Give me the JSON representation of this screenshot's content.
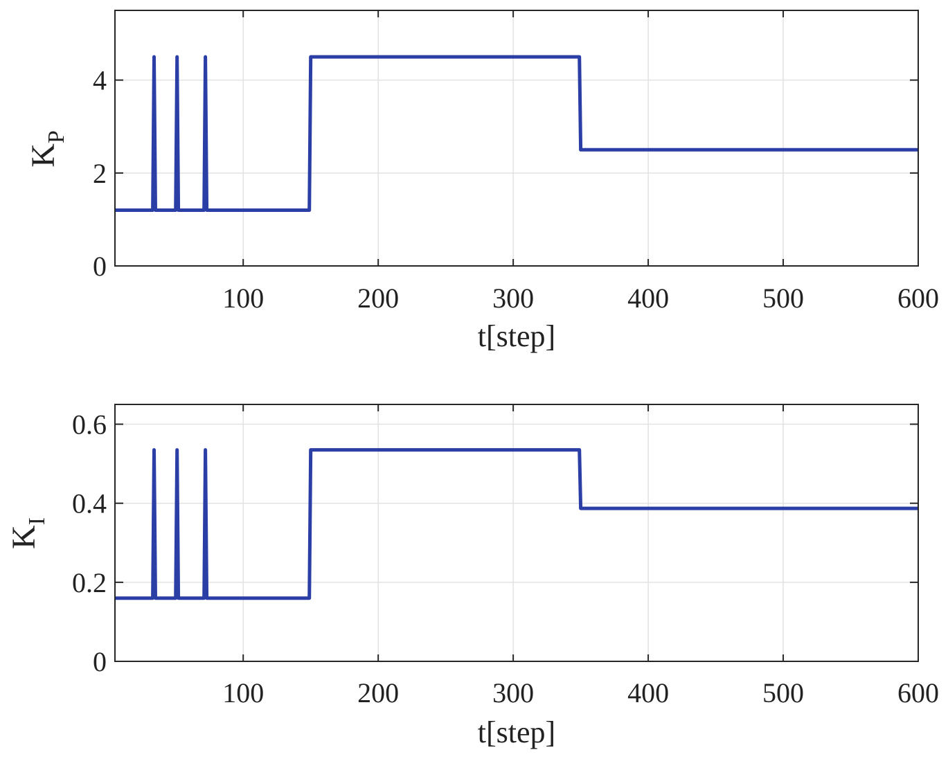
{
  "colors": {
    "line": "#2b3ea6",
    "grid": "#e2e2e2",
    "axis": "#262626"
  },
  "chart_data": [
    {
      "type": "line",
      "title": "",
      "xlabel": "t[step]",
      "ylabel": {
        "main": "K",
        "sub": "P"
      },
      "xlim": [
        5,
        600
      ],
      "ylim": [
        0,
        5.5
      ],
      "xticks": [
        100,
        200,
        300,
        400,
        500,
        600
      ],
      "xtick_labels": [
        "100",
        "200",
        "300",
        "400",
        "500",
        "600"
      ],
      "yticks": [
        0,
        2,
        4
      ],
      "ytick_labels": [
        "0",
        "2",
        "4"
      ],
      "grid": true,
      "series": [
        {
          "name": "K_P",
          "x": [
            5,
            33,
            34,
            35,
            50,
            51,
            52,
            71,
            72,
            73,
            149,
            150,
            349,
            350,
            600
          ],
          "y": [
            1.2,
            1.2,
            4.5,
            1.2,
            1.2,
            4.5,
            1.2,
            1.2,
            4.5,
            1.2,
            1.2,
            4.5,
            4.5,
            2.5,
            2.5
          ]
        }
      ]
    },
    {
      "type": "line",
      "title": "",
      "xlabel": "t[step]",
      "ylabel": {
        "main": "K",
        "sub": "I"
      },
      "xlim": [
        5,
        600
      ],
      "ylim": [
        0,
        0.65
      ],
      "xticks": [
        100,
        200,
        300,
        400,
        500,
        600
      ],
      "xtick_labels": [
        "100",
        "200",
        "300",
        "400",
        "500",
        "600"
      ],
      "yticks": [
        0,
        0.2,
        0.4,
        0.6
      ],
      "ytick_labels": [
        "0",
        "0.2",
        "0.4",
        "0.6"
      ],
      "grid": true,
      "series": [
        {
          "name": "K_I",
          "x": [
            5,
            33,
            34,
            35,
            50,
            51,
            52,
            71,
            72,
            73,
            149,
            150,
            349,
            350,
            600
          ],
          "y": [
            0.16,
            0.16,
            0.535,
            0.16,
            0.16,
            0.535,
            0.16,
            0.16,
            0.535,
            0.16,
            0.16,
            0.535,
            0.535,
            0.387,
            0.387
          ]
        }
      ]
    }
  ]
}
